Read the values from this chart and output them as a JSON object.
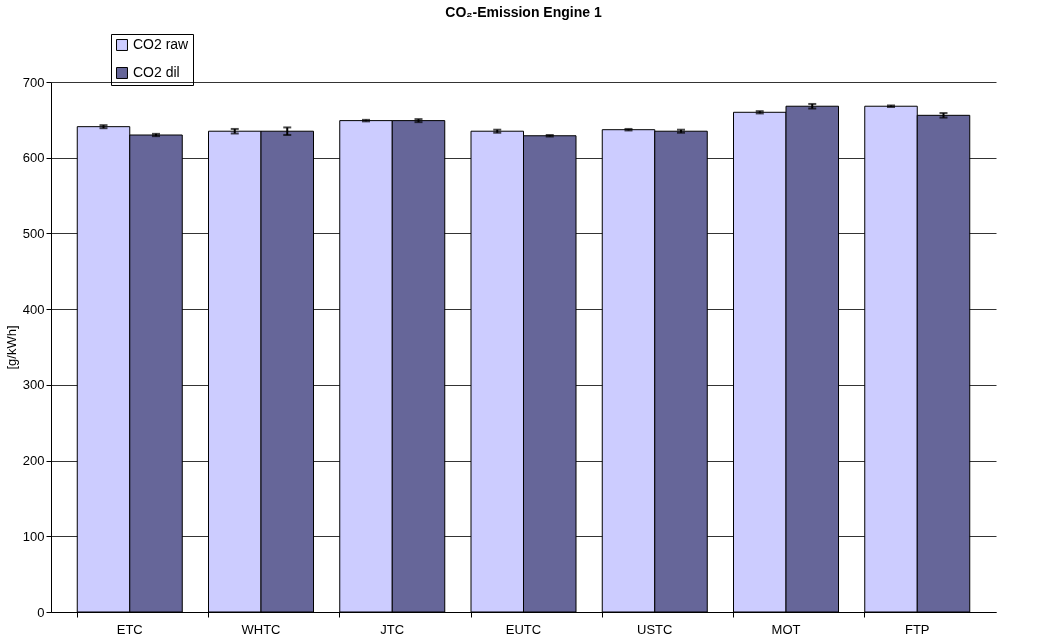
{
  "chart_data": {
    "type": "bar",
    "title": "CO₂-Emission Engine 1",
    "ylabel": "[g/kWh]",
    "categories": [
      "ETC",
      "WHTC",
      "JTC",
      "EUTC",
      "USTC",
      "MOT",
      "FTP"
    ],
    "series": [
      {
        "name": "CO2 raw",
        "color": "#ccccff",
        "values": [
          641,
          635,
          649,
          635,
          637,
          660,
          668
        ],
        "errors": [
          2,
          3,
          1,
          2,
          1,
          1.5,
          1
        ]
      },
      {
        "name": "CO2 dil",
        "color": "#666699",
        "values": [
          630,
          635,
          649,
          629,
          635,
          668,
          656
        ],
        "errors": [
          1.5,
          5,
          2,
          1,
          2,
          3,
          3
        ]
      }
    ],
    "ylim": [
      0,
      700
    ],
    "yticks": [
      0,
      100,
      200,
      300,
      400,
      500,
      600,
      700
    ],
    "grid": "y",
    "legend": "top left"
  }
}
